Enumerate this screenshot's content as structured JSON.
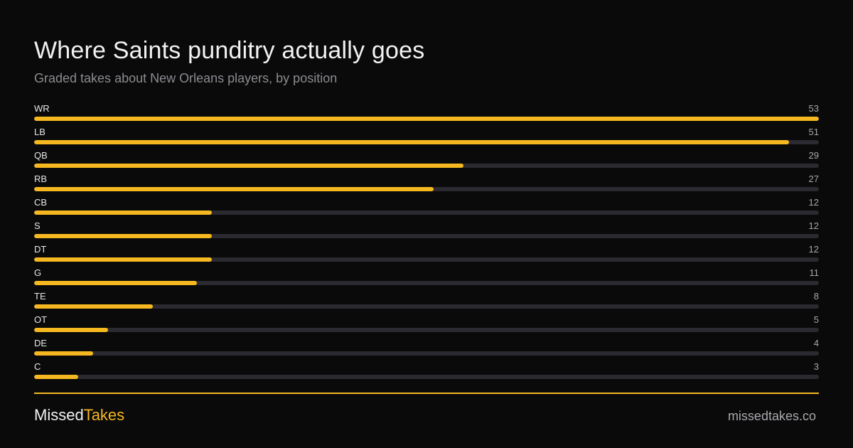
{
  "header": {
    "title": "Where Saints punditry actually goes",
    "subtitle": "Graded takes about New Orleans players, by position"
  },
  "footer": {
    "brand_part1": "Missed",
    "brand_part2": "Takes",
    "site": "missedtakes.co"
  },
  "colors": {
    "background": "#0a0a0a",
    "accent": "#f5b820",
    "track": "#2a2a30"
  },
  "chart_data": {
    "type": "bar",
    "orientation": "horizontal",
    "title": "Where Saints punditry actually goes",
    "subtitle": "Graded takes about New Orleans players, by position",
    "categories": [
      "WR",
      "LB",
      "QB",
      "RB",
      "CB",
      "S",
      "DT",
      "G",
      "TE",
      "OT",
      "DE",
      "C"
    ],
    "values": [
      53,
      51,
      29,
      27,
      12,
      12,
      12,
      11,
      8,
      5,
      4,
      3
    ],
    "xlim": [
      0,
      53
    ],
    "grid": false,
    "legend": "none"
  }
}
